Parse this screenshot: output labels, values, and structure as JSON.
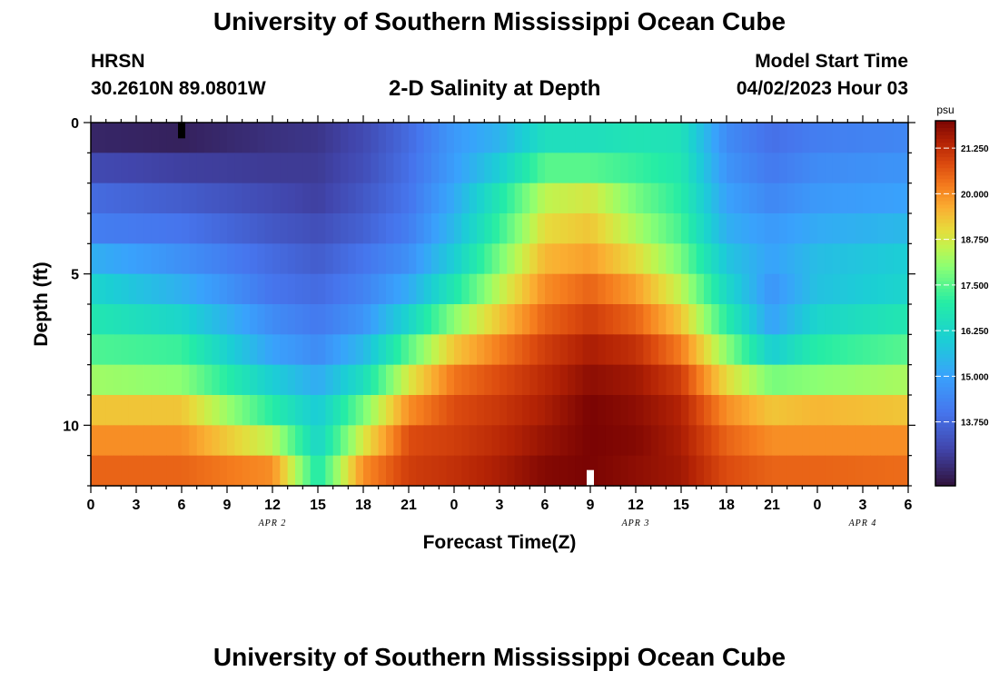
{
  "header": {
    "title": "University of Southern Mississippi Ocean Cube",
    "station": "HRSN",
    "coordinates": "30.2610N  89.0801W",
    "plot_title": "2-D Salinity at Depth",
    "model_start_label": "Model Start Time",
    "model_start_value": "04/02/2023 Hour 03"
  },
  "footer": {
    "title": "University of Southern Mississippi Ocean Cube"
  },
  "chart_data": {
    "type": "heatmap",
    "title": "2-D Salinity at Depth",
    "xlabel": "Forecast Time(Z)",
    "ylabel": "Depth (ft)",
    "x_tick_labels": [
      "0",
      "3",
      "6",
      "9",
      "12",
      "15",
      "18",
      "21",
      "0",
      "3",
      "6",
      "9",
      "12",
      "15",
      "18",
      "21",
      "0",
      "3",
      "6"
    ],
    "x_range_hours": [
      0,
      54
    ],
    "date_labels": [
      {
        "text": "APR 2",
        "hour": 12
      },
      {
        "text": "APR 3",
        "hour": 36
      },
      {
        "text": "APR 4",
        "hour": 51
      }
    ],
    "y_range_ft": [
      0,
      12
    ],
    "y_tick_labels": [
      {
        "text": "0",
        "depth": 0
      },
      {
        "text": "5",
        "depth": 5
      },
      {
        "text": "10",
        "depth": 10
      }
    ],
    "depth_layers_ft": [
      0.5,
      1.5,
      2.5,
      3.5,
      4.5,
      5.5,
      6.5,
      7.5,
      8.5,
      9.5,
      10.5,
      11.5
    ],
    "colorbar": {
      "unit": "psu",
      "min": 12.0,
      "max": 22.0,
      "tick_values": [
        13.75,
        15.0,
        16.25,
        17.5,
        18.75,
        20.0,
        21.25
      ],
      "tick_labels": [
        "13.750",
        "15.000",
        "16.250",
        "17.500",
        "18.750",
        "20.000",
        "21.250"
      ]
    },
    "salinity_psu_by_hour": [
      {
        "hour": 0,
        "values": [
          12.4,
          13.1,
          13.8,
          14.2,
          15.3,
          16.2,
          16.8,
          17.4,
          18.2,
          19.3,
          20.0,
          20.5
        ]
      },
      {
        "hour": 6,
        "values": [
          12.3,
          12.9,
          13.5,
          14.0,
          14.6,
          15.3,
          16.2,
          17.2,
          18.0,
          19.3,
          20.0,
          20.5
        ]
      },
      {
        "hour": 12,
        "values": [
          12.6,
          12.8,
          13.1,
          13.4,
          13.8,
          14.0,
          14.5,
          15.0,
          16.0,
          17.0,
          18.5,
          20.0
        ]
      },
      {
        "hour": 15,
        "values": [
          12.7,
          12.8,
          12.9,
          13.2,
          13.5,
          13.8,
          14.1,
          14.5,
          15.2,
          15.9,
          16.2,
          16.8
        ]
      },
      {
        "hour": 18,
        "values": [
          13.1,
          13.2,
          13.4,
          13.6,
          14.0,
          14.3,
          14.7,
          15.5,
          16.5,
          17.8,
          18.8,
          20.0
        ]
      },
      {
        "hour": 21,
        "values": [
          13.8,
          13.9,
          14.0,
          14.2,
          14.6,
          15.2,
          16.2,
          17.5,
          18.8,
          20.0,
          20.8,
          21.0
        ]
      },
      {
        "hour": 24,
        "values": [
          14.8,
          14.9,
          15.2,
          15.5,
          16.0,
          16.8,
          18.0,
          19.3,
          20.3,
          20.8,
          21.0,
          21.2
        ]
      },
      {
        "hour": 27,
        "values": [
          15.4,
          16.0,
          16.8,
          17.2,
          17.8,
          18.5,
          19.3,
          20.2,
          20.8,
          21.1,
          21.3,
          21.5
        ]
      },
      {
        "hour": 30,
        "values": [
          16.5,
          17.5,
          18.5,
          19.0,
          19.5,
          20.0,
          20.5,
          21.0,
          21.3,
          21.5,
          21.7,
          21.9
        ]
      },
      {
        "hour": 33,
        "values": [
          16.5,
          17.5,
          18.8,
          19.3,
          19.8,
          20.5,
          21.0,
          21.5,
          21.8,
          22.0,
          22.0,
          22.0
        ]
      },
      {
        "hour": 36,
        "values": [
          16.7,
          17.2,
          17.8,
          18.3,
          19.0,
          19.8,
          20.5,
          21.2,
          21.6,
          21.8,
          21.9,
          21.8
        ]
      },
      {
        "hour": 39,
        "values": [
          16.6,
          16.8,
          17.0,
          17.3,
          17.8,
          18.5,
          19.3,
          20.2,
          21.0,
          21.4,
          21.5,
          21.6
        ]
      },
      {
        "hour": 42,
        "values": [
          14.5,
          14.7,
          15.0,
          15.3,
          15.8,
          16.3,
          17.0,
          18.0,
          19.0,
          20.0,
          20.5,
          20.8
        ]
      },
      {
        "hour": 45,
        "values": [
          13.9,
          14.1,
          14.4,
          14.8,
          15.0,
          14.7,
          15.0,
          16.0,
          17.8,
          19.3,
          20.0,
          20.5
        ]
      },
      {
        "hour": 48,
        "values": [
          14.2,
          14.5,
          14.8,
          15.2,
          15.6,
          15.7,
          16.2,
          17.0,
          18.0,
          19.5,
          20.0,
          20.5
        ]
      },
      {
        "hour": 54,
        "values": [
          14.4,
          14.7,
          15.0,
          15.5,
          16.0,
          16.2,
          16.8,
          17.5,
          18.3,
          19.3,
          20.0,
          20.4
        ]
      }
    ],
    "markers": [
      {
        "hour": 6,
        "depth": 0.25,
        "color": "#000000"
      },
      {
        "hour": 33,
        "depth": 11.75,
        "color": "#ffffff"
      }
    ]
  }
}
